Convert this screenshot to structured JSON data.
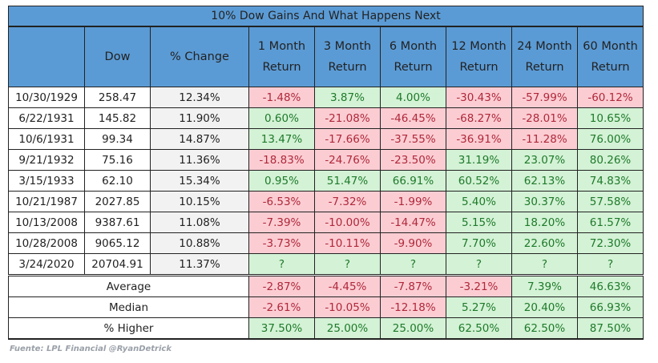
{
  "title": "10% Dow Gains And What Happens Next",
  "headers": [
    "",
    "Dow",
    "% Change",
    "1 Month Return",
    "3 Month Return",
    "6 Month Return",
    "12 Month Return",
    "24 Month Return",
    "60 Month Return"
  ],
  "rows": [
    {
      "date": "10/30/1929",
      "dow": "258.47",
      "change": "12.34%",
      "returns": [
        "-1.48%",
        "3.87%",
        "4.00%",
        "-30.43%",
        "-57.99%",
        "-60.12%"
      ]
    },
    {
      "date": "6/22/1931",
      "dow": "145.82",
      "change": "11.90%",
      "returns": [
        "0.60%",
        "-21.08%",
        "-46.45%",
        "-68.27%",
        "-28.01%",
        "10.65%"
      ]
    },
    {
      "date": "10/6/1931",
      "dow": "99.34",
      "change": "14.87%",
      "returns": [
        "13.47%",
        "-17.66%",
        "-37.55%",
        "-36.91%",
        "-11.28%",
        "76.00%"
      ]
    },
    {
      "date": "9/21/1932",
      "dow": "75.16",
      "change": "11.36%",
      "returns": [
        "-18.83%",
        "-24.76%",
        "-23.50%",
        "31.19%",
        "23.07%",
        "80.26%"
      ]
    },
    {
      "date": "3/15/1933",
      "dow": "62.10",
      "change": "15.34%",
      "returns": [
        "0.95%",
        "51.47%",
        "66.91%",
        "60.52%",
        "62.13%",
        "74.83%"
      ]
    },
    {
      "date": "10/21/1987",
      "dow": "2027.85",
      "change": "10.15%",
      "returns": [
        "-6.53%",
        "-7.32%",
        "-1.99%",
        "5.40%",
        "30.37%",
        "57.58%"
      ]
    },
    {
      "date": "10/13/2008",
      "dow": "9387.61",
      "change": "11.08%",
      "returns": [
        "-7.39%",
        "-10.00%",
        "-14.47%",
        "5.15%",
        "18.20%",
        "61.57%"
      ]
    },
    {
      "date": "10/28/2008",
      "dow": "9065.12",
      "change": "10.88%",
      "returns": [
        "-3.73%",
        "-10.11%",
        "-9.90%",
        "7.70%",
        "22.60%",
        "72.30%"
      ]
    },
    {
      "date": "3/24/2020",
      "dow": "20704.91",
      "change": "11.37%",
      "returns": [
        "?",
        "?",
        "?",
        "?",
        "?",
        "?"
      ]
    }
  ],
  "summary": [
    {
      "label": "Average",
      "values": [
        "-2.87%",
        "-4.45%",
        "-7.87%",
        "-3.21%",
        "7.39%",
        "46.63%"
      ]
    },
    {
      "label": "Median",
      "values": [
        "-2.61%",
        "-10.05%",
        "-12.18%",
        "5.27%",
        "20.40%",
        "66.93%"
      ]
    },
    {
      "label": "% Higher",
      "values": [
        "37.50%",
        "25.00%",
        "25.00%",
        "62.50%",
        "62.50%",
        "87.50%"
      ]
    }
  ],
  "footer": "Fuente: LPL Financial @RyanDetrick",
  "colors": {
    "header": "#5b9bd5",
    "positive_bg": "#d4f2d6",
    "negative_bg": "#fbcdd3"
  }
}
